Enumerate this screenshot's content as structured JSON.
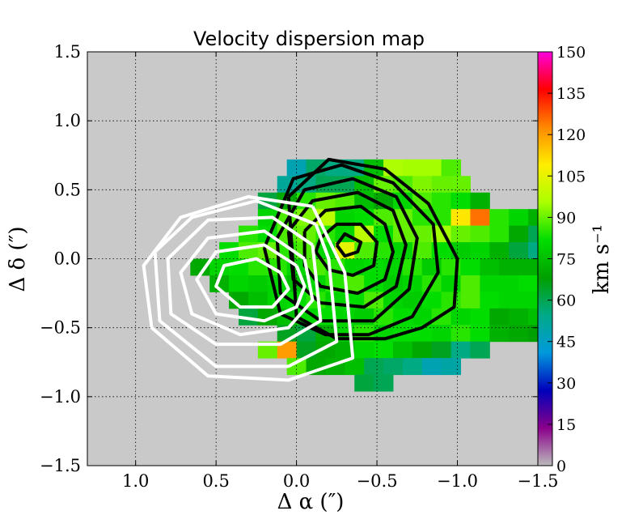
{
  "chart_data": {
    "type": "heatmap",
    "title": "Velocity dispersion map",
    "xlabel": "Δ α  (″)",
    "ylabel": "Δ δ  (″)",
    "xlim": [
      1.3,
      -1.5
    ],
    "ylim": [
      -1.5,
      1.5
    ],
    "x_ticks": [
      1.0,
      0.5,
      0.0,
      -0.5,
      -1.0,
      -1.5
    ],
    "x_tick_labels": [
      "1.0",
      "0.5",
      "0.0",
      "−0.5",
      "−1.0",
      "−1.5"
    ],
    "y_ticks": [
      1.5,
      1.0,
      0.5,
      0.0,
      -0.5,
      -1.0,
      -1.5
    ],
    "y_tick_labels": [
      "1.5",
      "1.0",
      "0.5",
      "0.0",
      "−0.5",
      "−1.0",
      "−1.5"
    ],
    "grid": true,
    "background_color": "#c9c9c9",
    "pixel_size": 0.12,
    "colorbar": {
      "label": "km s⁻¹",
      "range": [
        0,
        150
      ],
      "ticks": [
        0,
        15,
        30,
        45,
        60,
        75,
        90,
        105,
        120,
        135,
        150
      ],
      "tick_labels": [
        "0",
        "15",
        "30",
        "45",
        "60",
        "75",
        "90",
        "105",
        "120",
        "135",
        "150"
      ],
      "colors": [
        "#bbbbbb",
        "#8a008a",
        "#0000bb",
        "#0099dd",
        "#00aa88",
        "#00a000",
        "#00dd00",
        "#aaff00",
        "#ffee00",
        "#ff8800",
        "#ff0000",
        "#ff00dd"
      ]
    },
    "map_rows": [
      {
        "y": 0.66,
        "x0": -0.38,
        "values": [
          48,
          58,
          55,
          55,
          75,
          96,
          95,
          95,
          88
        ]
      },
      {
        "y": 0.54,
        "x0": -0.38,
        "values": [
          52,
          55,
          60,
          60,
          75,
          90,
          88,
          92,
          90,
          90
        ]
      },
      {
        "y": 0.42,
        "x0": -0.38,
        "values": [
          62,
          70,
          85,
          90,
          88,
          75,
          70,
          80,
          88,
          85,
          82,
          72
        ]
      },
      {
        "y": 0.3,
        "x0": -0.38,
        "values": [
          80,
          88,
          92,
          98,
          80,
          82,
          88,
          90,
          85,
          85,
          110,
          125,
          85,
          80,
          72,
          60,
          65
        ]
      },
      {
        "y": 0.18,
        "x0": -0.38,
        "values": [
          85,
          82,
          88,
          90,
          85,
          80,
          98,
          82,
          90,
          90,
          95,
          90,
          88,
          85,
          70,
          60,
          55,
          60,
          72
        ]
      },
      {
        "y": 0.06,
        "x0": -0.38,
        "values": [
          82,
          88,
          90,
          85,
          88,
          80,
          105,
          88,
          85,
          80,
          88,
          82,
          78,
          80,
          72,
          62,
          55,
          65,
          60,
          65,
          72
        ]
      },
      {
        "y": -0.06,
        "x0": -0.38,
        "values": [
          70,
          80,
          82,
          85,
          85,
          80,
          88,
          85,
          80,
          82,
          80,
          85,
          78,
          85,
          82,
          75,
          72,
          72,
          62,
          60,
          70,
          62,
          60,
          48
        ]
      },
      {
        "y": -0.18,
        "x0": -0.38,
        "values": [
          72,
          80,
          78,
          80,
          75,
          80,
          85,
          88,
          82,
          78,
          80,
          85,
          80,
          88,
          80,
          80,
          82,
          75,
          72,
          60,
          62,
          62
        ]
      },
      {
        "y": -0.3,
        "x0": -0.38,
        "values": [
          70,
          75,
          80,
          82,
          85,
          80,
          82,
          88,
          80,
          78,
          82,
          85,
          88,
          82,
          80,
          80,
          72,
          70,
          60,
          62
        ]
      },
      {
        "y": -0.42,
        "x0": -0.38,
        "values": [
          62,
          70,
          75,
          80,
          82,
          80,
          78,
          85,
          82,
          80,
          85,
          80,
          82,
          70,
          72,
          75,
          70,
          60,
          55
        ]
      },
      {
        "y": -0.54,
        "x0": -0.38,
        "values": [
          65,
          62,
          72,
          80,
          85,
          80,
          82,
          82,
          80,
          85,
          82,
          72,
          70,
          68,
          62
        ]
      },
      {
        "y": -0.66,
        "x0": -0.38,
        "values": [
          90,
          120,
          65,
          70,
          72,
          80,
          82,
          75,
          70,
          65,
          55,
          60
        ]
      },
      {
        "y": -0.78,
        "x0": -0.38,
        "values": [
          88,
          70,
          72,
          75,
          60,
          58,
          55,
          48,
          50
        ]
      },
      {
        "y": -0.9,
        "x0": -0.38,
        "values": [
          62,
          60
        ]
      }
    ],
    "contours_black": [
      {
        "level": 1,
        "points": [
          [
            -0.25,
            0.1
          ],
          [
            -0.3,
            0.18
          ],
          [
            -0.4,
            0.12
          ],
          [
            -0.38,
            0.05
          ],
          [
            -0.3,
            0.02
          ],
          [
            -0.25,
            0.1
          ]
        ]
      },
      {
        "level": 2,
        "points": [
          [
            -0.15,
            0.15
          ],
          [
            -0.25,
            0.25
          ],
          [
            -0.4,
            0.25
          ],
          [
            -0.5,
            0.12
          ],
          [
            -0.48,
            -0.05
          ],
          [
            -0.35,
            -0.12
          ],
          [
            -0.2,
            -0.08
          ],
          [
            -0.12,
            0.05
          ],
          [
            -0.15,
            0.15
          ]
        ]
      },
      {
        "level": 3,
        "points": [
          [
            -0.05,
            0.2
          ],
          [
            -0.18,
            0.35
          ],
          [
            -0.4,
            0.38
          ],
          [
            -0.55,
            0.25
          ],
          [
            -0.6,
            0.05
          ],
          [
            -0.55,
            -0.15
          ],
          [
            -0.38,
            -0.25
          ],
          [
            -0.15,
            -0.2
          ],
          [
            -0.05,
            -0.05
          ],
          [
            -0.05,
            0.2
          ]
        ]
      },
      {
        "level": 4,
        "points": [
          [
            0.05,
            0.2
          ],
          [
            -0.1,
            0.42
          ],
          [
            -0.38,
            0.48
          ],
          [
            -0.6,
            0.35
          ],
          [
            -0.68,
            0.1
          ],
          [
            -0.62,
            -0.2
          ],
          [
            -0.42,
            -0.35
          ],
          [
            -0.15,
            -0.32
          ],
          [
            0.02,
            -0.15
          ],
          [
            0.05,
            0.2
          ]
        ]
      },
      {
        "level": 5,
        "points": [
          [
            0.12,
            0.15
          ],
          [
            -0.05,
            0.5
          ],
          [
            -0.35,
            0.58
          ],
          [
            -0.62,
            0.45
          ],
          [
            -0.75,
            0.15
          ],
          [
            -0.7,
            -0.22
          ],
          [
            -0.48,
            -0.45
          ],
          [
            -0.15,
            -0.45
          ],
          [
            0.1,
            -0.25
          ],
          [
            0.12,
            0.15
          ]
        ]
      },
      {
        "level": 6,
        "points": [
          [
            0.2,
            0.08
          ],
          [
            0.02,
            0.58
          ],
          [
            -0.28,
            0.68
          ],
          [
            -0.6,
            0.55
          ],
          [
            -0.85,
            0.25
          ],
          [
            -0.88,
            -0.1
          ],
          [
            -0.72,
            -0.42
          ],
          [
            -0.45,
            -0.55
          ],
          [
            -0.18,
            -0.55
          ],
          [
            0.1,
            -0.4
          ],
          [
            0.2,
            0.08
          ]
        ]
      },
      {
        "level": 7,
        "points": [
          [
            0.05,
            0.45
          ],
          [
            -0.2,
            0.72
          ],
          [
            -0.55,
            0.65
          ],
          [
            -0.82,
            0.4
          ],
          [
            -1.0,
            0.0
          ],
          [
            -0.98,
            -0.35
          ],
          [
            -0.78,
            -0.5
          ],
          [
            -0.55,
            -0.58
          ],
          [
            -0.25,
            -0.58
          ],
          [
            0.0,
            -0.42
          ],
          [
            0.05,
            0.45
          ]
        ]
      }
    ],
    "contours_white": [
      {
        "level": 1,
        "points": [
          [
            0.1,
            -0.1
          ],
          [
            0.25,
            0.0
          ],
          [
            0.45,
            -0.05
          ],
          [
            0.5,
            -0.2
          ],
          [
            0.35,
            -0.35
          ],
          [
            0.15,
            -0.35
          ],
          [
            0.05,
            -0.22
          ],
          [
            0.1,
            -0.1
          ]
        ]
      },
      {
        "level": 2,
        "points": [
          [
            0.0,
            -0.05
          ],
          [
            0.2,
            0.1
          ],
          [
            0.5,
            0.05
          ],
          [
            0.62,
            -0.15
          ],
          [
            0.5,
            -0.4
          ],
          [
            0.2,
            -0.45
          ],
          [
            0.0,
            -0.35
          ],
          [
            -0.05,
            -0.2
          ],
          [
            0.0,
            -0.05
          ]
        ]
      },
      {
        "level": 3,
        "points": [
          [
            -0.05,
            0.0
          ],
          [
            0.2,
            0.2
          ],
          [
            0.55,
            0.15
          ],
          [
            0.72,
            -0.1
          ],
          [
            0.65,
            -0.4
          ],
          [
            0.35,
            -0.55
          ],
          [
            0.05,
            -0.5
          ],
          [
            -0.1,
            -0.3
          ],
          [
            -0.05,
            0.0
          ]
        ]
      },
      {
        "level": 4,
        "points": [
          [
            -0.1,
            0.1
          ],
          [
            0.15,
            0.3
          ],
          [
            0.55,
            0.28
          ],
          [
            0.8,
            0.0
          ],
          [
            0.78,
            -0.4
          ],
          [
            0.5,
            -0.62
          ],
          [
            0.1,
            -0.62
          ],
          [
            -0.15,
            -0.45
          ],
          [
            -0.1,
            0.1
          ]
        ]
      },
      {
        "level": 5,
        "points": [
          [
            -0.12,
            0.25
          ],
          [
            0.25,
            0.42
          ],
          [
            0.65,
            0.3
          ],
          [
            0.88,
            0.05
          ],
          [
            0.85,
            -0.45
          ],
          [
            0.5,
            -0.78
          ],
          [
            0.05,
            -0.78
          ],
          [
            -0.25,
            -0.6
          ],
          [
            -0.2,
            0.0
          ],
          [
            -0.12,
            0.25
          ]
        ]
      },
      {
        "level": 6,
        "points": [
          [
            -0.1,
            0.38
          ],
          [
            0.3,
            0.45
          ],
          [
            0.72,
            0.3
          ],
          [
            0.95,
            -0.05
          ],
          [
            0.9,
            -0.5
          ],
          [
            0.55,
            -0.85
          ],
          [
            0.05,
            -0.88
          ],
          [
            -0.35,
            -0.72
          ],
          [
            -0.3,
            -0.1
          ],
          [
            -0.1,
            0.38
          ]
        ]
      }
    ]
  }
}
